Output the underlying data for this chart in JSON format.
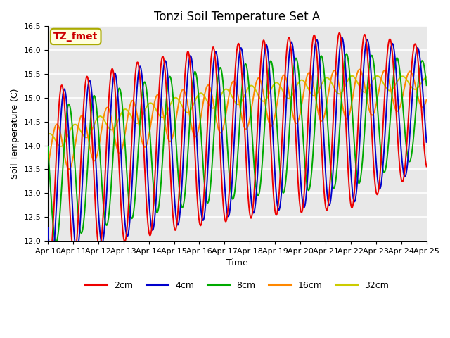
{
  "title": "Tonzi Soil Temperature Set A",
  "xlabel": "Time",
  "ylabel": "Soil Temperature (C)",
  "ylim": [
    12.0,
    16.5
  ],
  "x_tick_labels": [
    "Apr 10",
    "Apr 11",
    "Apr 12",
    "Apr 13",
    "Apr 14",
    "Apr 15",
    "Apr 16",
    "Apr 17",
    "Apr 18",
    "Apr 19",
    "Apr 20",
    "Apr 21",
    "Apr 22",
    "Apr 23",
    "Apr 24",
    "Apr 25"
  ],
  "annotation_text": "TZ_fmet",
  "annotation_color": "#cc0000",
  "annotation_bg": "#ffffdd",
  "annotation_border": "#aaaa00",
  "colors": {
    "2cm": "#ee0000",
    "4cm": "#0000cc",
    "8cm": "#00aa00",
    "16cm": "#ff8800",
    "32cm": "#cccc00"
  },
  "line_width": 1.4,
  "bg_color": "#e8e8e8",
  "fig_bg": "#ffffff",
  "grid_color": "#ffffff",
  "title_fontsize": 12,
  "label_fontsize": 9,
  "tick_fontsize": 8
}
